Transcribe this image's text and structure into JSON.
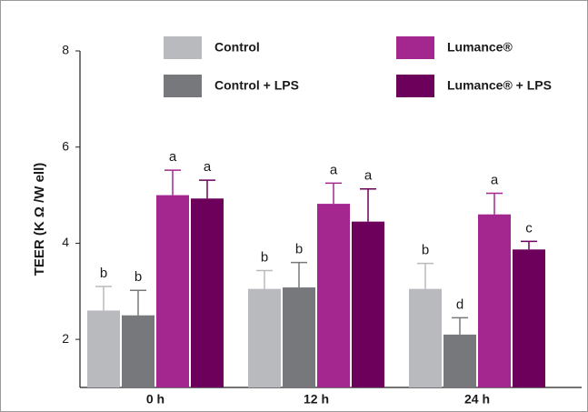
{
  "chart_data": {
    "type": "bar",
    "y_label": "TEER (K Ω /W ell)",
    "categories": [
      "0 h",
      "12 h",
      "24 h"
    ],
    "series": [
      {
        "name": "Control",
        "color": "#b8babd",
        "values": [
          2.6,
          3.05,
          3.05
        ],
        "errors": [
          0.5,
          0.38,
          0.53
        ],
        "labels": [
          "b",
          "b",
          "b"
        ]
      },
      {
        "name": "Control + LPS",
        "color": "#76787b",
        "values": [
          2.5,
          3.08,
          2.1
        ],
        "errors": [
          0.52,
          0.52,
          0.35
        ],
        "labels": [
          "b",
          "b",
          "d"
        ]
      },
      {
        "name": "Lumance®",
        "color": "#a4278f",
        "values": [
          5.0,
          4.82,
          4.6
        ],
        "errors": [
          0.52,
          0.43,
          0.44
        ],
        "labels": [
          "a",
          "a",
          "a"
        ]
      },
      {
        "name": "Lumance® + LPS",
        "color": "#6c005a",
        "values": [
          4.93,
          4.45,
          3.87
        ],
        "errors": [
          0.38,
          0.68,
          0.17
        ],
        "labels": [
          "a",
          "a",
          "c"
        ]
      }
    ],
    "ylim": [
      1,
      8
    ],
    "yticks": [
      2,
      4,
      6,
      8
    ]
  }
}
